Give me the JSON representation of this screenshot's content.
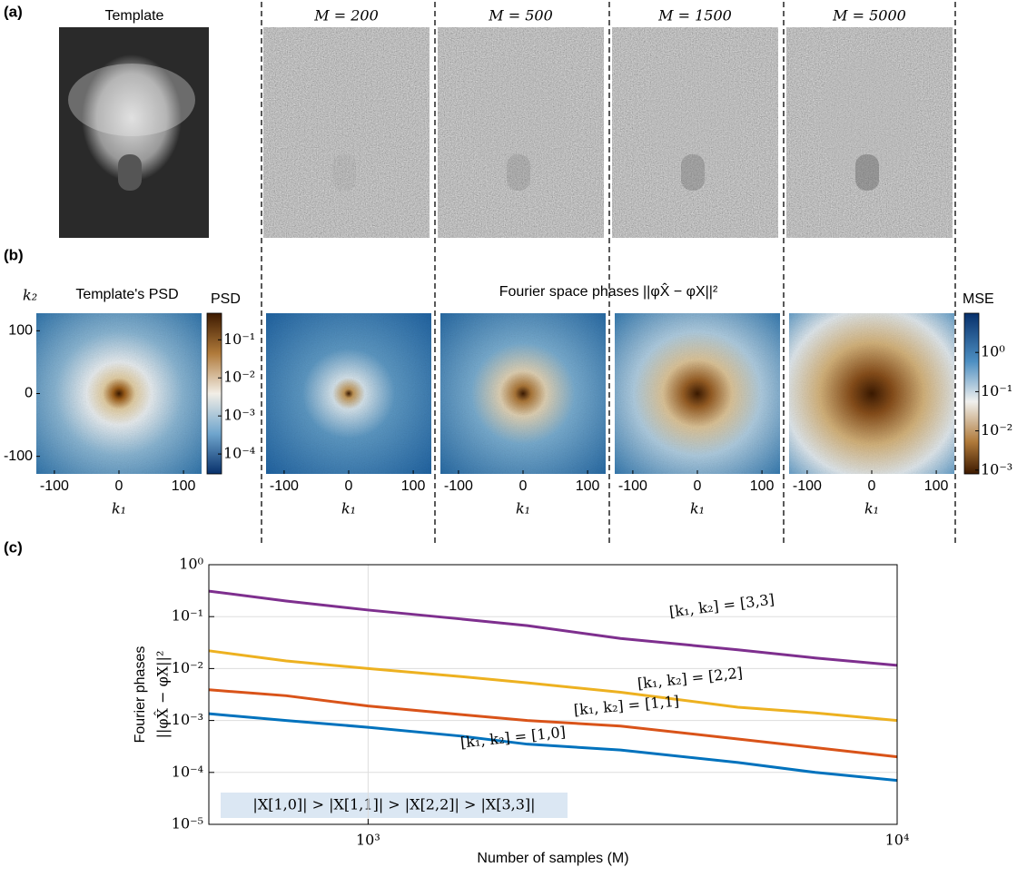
{
  "panel_labels": [
    "(a)",
    "(b)",
    "(c)"
  ],
  "panel_a": {
    "template_title": "Template",
    "titles": [
      "M = 200",
      "M = 500",
      "M = 1500",
      "M = 5000"
    ]
  },
  "panel_b": {
    "template_title": "Template's PSD",
    "phase_title": "Fourier space phases ||φX̂ − φX||²",
    "xlabel": "k₁",
    "ylabel": "k₂",
    "xlim": [
      -128,
      128
    ],
    "xticks": [
      -100,
      0,
      100
    ],
    "yticks": [
      100,
      0,
      -100
    ],
    "psd_colorbar": {
      "label": "PSD",
      "clim": [
        3e-05,
        0.5
      ],
      "ticks": [
        {
          "value": 0.1,
          "label": "10⁻¹"
        },
        {
          "value": 0.01,
          "label": "10⁻²"
        },
        {
          "value": 0.001,
          "label": "10⁻³"
        },
        {
          "value": 0.0001,
          "label": "10⁻⁴"
        }
      ]
    },
    "mse_colorbar": {
      "label": "MSE",
      "clim": [
        0.0008,
        10
      ],
      "ticks": [
        {
          "value": 1,
          "label": "10⁰"
        },
        {
          "value": 0.1,
          "label": "10⁻¹"
        },
        {
          "value": 0.01,
          "label": "10⁻²"
        },
        {
          "value": 0.001,
          "label": "10⁻³"
        }
      ]
    }
  },
  "chart_data": {
    "type": "line",
    "ylabel": [
      "Fourier phases",
      "||φX̂ − φX||²"
    ],
    "xlabel": "Number of samples (M)",
    "annotation": "|X[1,0]| > |X[1,1]| > |X[2,2]| > |X[3,3]|",
    "log_x": true,
    "log_y": true,
    "grid": true,
    "x": [
      500,
      700,
      1000,
      1500,
      2000,
      3000,
      5000,
      7000,
      10000
    ],
    "xlim": [
      500,
      10000
    ],
    "xticks": [
      {
        "value": 1000,
        "label": "10³"
      },
      {
        "value": 10000,
        "label": "10⁴"
      }
    ],
    "ylim": [
      1e-05,
      1
    ],
    "yticks": [
      {
        "value": 1,
        "label": "10⁰"
      },
      {
        "value": 0.1,
        "label": "10⁻¹"
      },
      {
        "value": 0.01,
        "label": "10⁻²"
      },
      {
        "value": 0.001,
        "label": "10⁻³"
      },
      {
        "value": 0.0001,
        "label": "10⁻⁴"
      },
      {
        "value": 1e-05,
        "label": "10⁻⁵"
      }
    ],
    "series": [
      {
        "name": "[k₁, k₂] = [3,3]",
        "color": "#7e2f8e",
        "values": [
          0.31,
          0.2,
          0.134,
          0.09,
          0.067,
          0.038,
          0.023,
          0.016,
          0.0115
        ]
      },
      {
        "name": "[k₁, k₂] = [2,2]",
        "color": "#edb120",
        "values": [
          0.022,
          0.014,
          0.01,
          0.007,
          0.0053,
          0.0035,
          0.0018,
          0.0014,
          0.001
        ]
      },
      {
        "name": "[k₁, k₂] = [1,1]",
        "color": "#d95319",
        "values": [
          0.0039,
          0.003,
          0.0019,
          0.0013,
          0.001,
          0.00078,
          0.00044,
          0.0003,
          0.0002
        ]
      },
      {
        "name": "[k₁, k₂] = [1,0]",
        "color": "#0072bd",
        "values": [
          0.00135,
          0.001,
          0.00074,
          0.0005,
          0.00035,
          0.00027,
          0.000155,
          0.0001,
          7e-05
        ]
      }
    ]
  }
}
